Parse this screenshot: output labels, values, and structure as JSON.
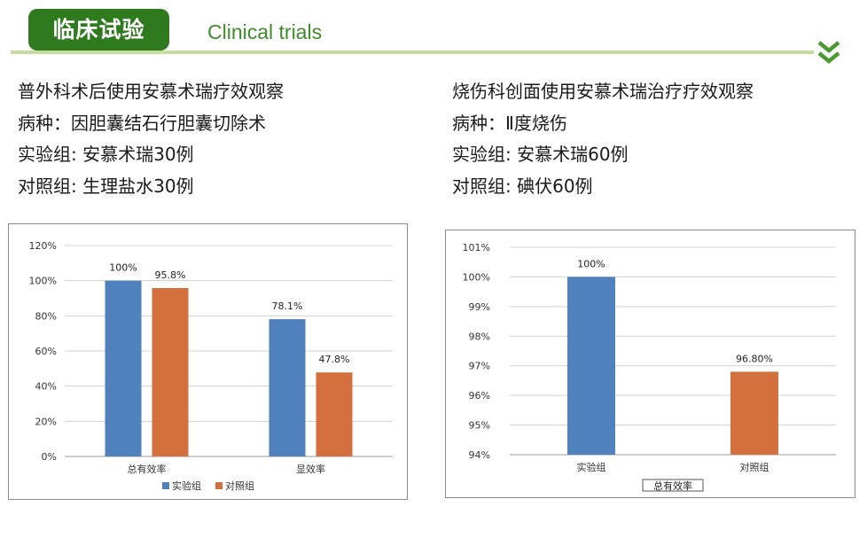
{
  "header": {
    "badge_title": "临床试验",
    "subtitle": "Clinical trials",
    "chevron_icon": "double-chevron-down-icon",
    "colors": {
      "badge": "#2f7a1f",
      "rule": "#c5dc9e",
      "subtitle": "#3f8a2c"
    }
  },
  "left_info": {
    "title": "普外科术后使用安慕术瑞疗效观察",
    "disease": "病种：因胆囊结石行胆囊切除术",
    "test_group": "实验组: 安慕术瑞30例",
    "control_group": "对照组: 生理盐水30例"
  },
  "right_info": {
    "title": "烧伤科创面使用安慕术瑞治疗疗效观察",
    "disease": "病种：Ⅱ度烧伤",
    "test_group": "实验组: 安慕术瑞60例",
    "control_group": "对照组: 碘伏60例"
  },
  "chart_data": [
    {
      "type": "bar",
      "categories": [
        "总有效率",
        "显效率"
      ],
      "series": [
        {
          "name": "实验组",
          "values": [
            100,
            78.1
          ],
          "labels": [
            "100%",
            "78.1%"
          ],
          "color": "#4f81bd"
        },
        {
          "name": "对照组",
          "values": [
            95.8,
            47.8
          ],
          "labels": [
            "95.8%",
            "47.8%"
          ],
          "color": "#d46f3e"
        }
      ],
      "ylim": [
        0,
        120
      ],
      "yticks": [
        0,
        20,
        40,
        60,
        80,
        100,
        120
      ],
      "ytick_labels": [
        "0%",
        "20%",
        "40%",
        "60%",
        "80%",
        "100%",
        "120%"
      ],
      "grid": true,
      "legend": "bottom",
      "title": "",
      "xlabel": "",
      "ylabel": ""
    },
    {
      "type": "bar",
      "categories": [
        "实验组",
        "对照组"
      ],
      "values": [
        100,
        96.8
      ],
      "labels": [
        "100%",
        "96.80%"
      ],
      "colors": [
        "#4f81bd",
        "#d46f3e"
      ],
      "ylim": [
        94,
        101
      ],
      "yticks": [
        94,
        95,
        96,
        97,
        98,
        99,
        100,
        101
      ],
      "ytick_labels": [
        "94%",
        "95%",
        "96%",
        "97%",
        "98%",
        "99%",
        "100%",
        "101%"
      ],
      "grid": true,
      "legend": "none",
      "xlabel": "总有效率",
      "title": "",
      "ylabel": ""
    }
  ]
}
